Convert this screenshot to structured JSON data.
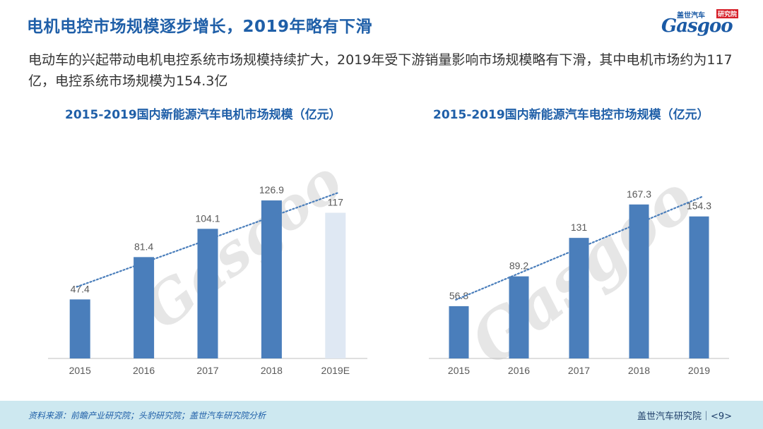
{
  "page": {
    "title": "电机电控市场规模逐步增长，2019年略有下滑",
    "subtitle": "电动车的兴起带动电机电控系统市场规模持续扩大，2019年受下游销量影响市场规模略有下滑，其中电机市场约为117亿，电控系统市场规模为154.3亿",
    "logo": {
      "brand": "Gasgoo",
      "cn": "盖世汽车",
      "tag": "研究院"
    },
    "footer": {
      "source": "资料来源：前瞻产业研究院；头豹研究院；盖世汽车研究院分析",
      "org": "盖世汽车研究院｜<9>"
    },
    "watermark": "Gasgoo"
  },
  "colors": {
    "bar": "#4a7ebb",
    "bar_estimate": "#dfe8f3",
    "trend": "#4a7ebb",
    "axis": "#bfbfbf",
    "label": "#595959",
    "title": "#1f5fa8"
  },
  "chart_data": [
    {
      "type": "bar",
      "title": "2015-2019国内新能源汽车电机市场规模（亿元）",
      "categories": [
        "2015",
        "2016",
        "2017",
        "2018",
        "2019E"
      ],
      "values": [
        47.4,
        81.4,
        104.1,
        126.9,
        117
      ],
      "data_labels": [
        "47.4",
        "81.4",
        "104.1",
        "126.9",
        "117"
      ],
      "estimate_index": 4,
      "trendline": "linear dotted",
      "ylim": [
        0,
        170
      ]
    },
    {
      "type": "bar",
      "title": "2015-2019国内新能源汽车电控市场规模（亿元）",
      "categories": [
        "2015",
        "2016",
        "2017",
        "2018",
        "2019"
      ],
      "values": [
        56.8,
        89.2,
        131,
        167.3,
        154.3
      ],
      "data_labels": [
        "56.8",
        "89.2",
        "131",
        "167.3",
        "154.3"
      ],
      "trendline": "linear dotted",
      "ylim": [
        0,
        230
      ]
    }
  ]
}
